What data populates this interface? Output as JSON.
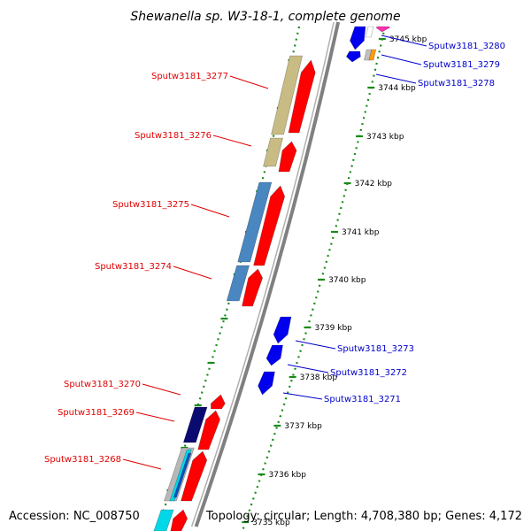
{
  "title": "Shewanella sp. W3-18-1, complete genome",
  "footer": {
    "accession": "Accession: NC_008750",
    "summary": "Topology: circular; Length: 4,708,380 bp; Genes: 4,172"
  },
  "colors": {
    "forward_gene": "#ff0000",
    "reverse_gene": "#0000ee",
    "backbone": "#808080",
    "dotted_track": "#1a8a1a",
    "cog_khaki": "#c8bc84",
    "cog_steelblue": "#4a86c0",
    "cog_navy": "#0a0a70",
    "cog_cyan": "#00d8e8",
    "cog_orange": "#ff9a10",
    "cog_magenta": "#ff30b0",
    "label_forward": "#e00000",
    "label_reverse": "#0000cc"
  },
  "scale_ticks": [
    "3745 kbp",
    "3744 kbp",
    "3743 kbp",
    "3742 kbp",
    "3741 kbp",
    "3740 kbp",
    "3739 kbp",
    "3738 kbp",
    "3737 kbp",
    "3736 kbp",
    "3735 kbp"
  ],
  "forward_labels": [
    "Sputw3181_3277",
    "Sputw3181_3276",
    "Sputw3181_3275",
    "Sputw3181_3274",
    "Sputw3181_3270",
    "Sputw3181_3269",
    "Sputw3181_3268"
  ],
  "reverse_labels": [
    "Sputw3181_3280",
    "Sputw3181_3279",
    "Sputw3181_3278",
    "Sputw3181_3273",
    "Sputw3181_3272",
    "Sputw3181_3271"
  ]
}
